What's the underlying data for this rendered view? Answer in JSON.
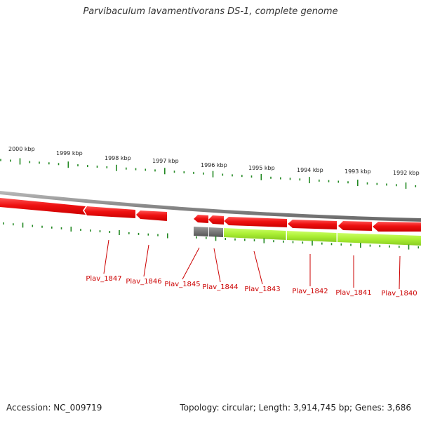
{
  "title": "Parvibaculum lavamentivorans DS-1, complete genome",
  "footer": {
    "accession": "Accession: NC_009719",
    "summary": "Topology: circular; Length: 3,914,745 bp; Genes: 3,686"
  },
  "colors": {
    "tick": "#228822",
    "backbone": "#888888",
    "gene_forward": "#ee1111",
    "gene_selected": "#aaee33",
    "gene_grey": "#666666",
    "label": "#cc0000"
  },
  "scale_labels": [
    "2000 kbp",
    "1999 kbp",
    "1998 kbp",
    "1997 kbp",
    "1996 kbp",
    "1995 kbp",
    "1994 kbp",
    "1993 kbp",
    "1992 kbp"
  ],
  "genes": [
    {
      "label": "Plav_1847"
    },
    {
      "label": "Plav_1846"
    },
    {
      "label": "Plav_1845"
    },
    {
      "label": "Plav_1844"
    },
    {
      "label": "Plav_1843"
    },
    {
      "label": "Plav_1842"
    },
    {
      "label": "Plav_1841"
    },
    {
      "label": "Plav_1840"
    }
  ]
}
